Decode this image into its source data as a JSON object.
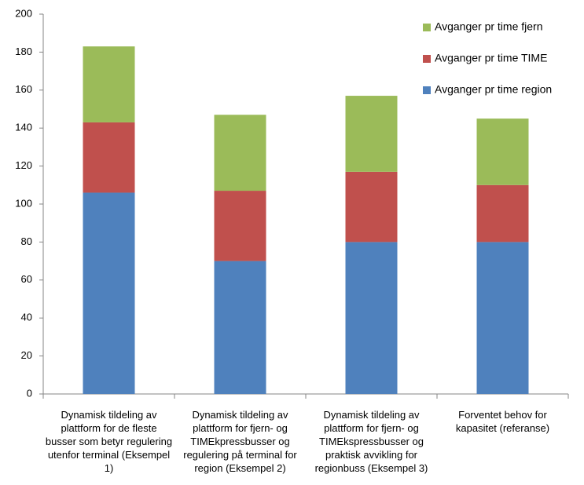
{
  "chart_data": {
    "type": "stacked-bar",
    "categories": [
      "Dynamisk tildeling av plattform for de fleste busser som betyr regulering utenfor terminal (Eksempel 1)",
      "Dynamisk tildeling av plattform for fjern- og TIMEkpressbusser og regulering på terminal for region (Eksempel 2)",
      "Dynamisk tildeling av plattform for fjern- og TIMEkspressbusser og praktisk avvikling for regionbuss (Eksempel 3)",
      "Forventet behov for kapasitet (referanse)"
    ],
    "series": [
      {
        "name": "Avganger pr time region",
        "color": "#4f81bd",
        "values": [
          106,
          70,
          80,
          80
        ]
      },
      {
        "name": "Avganger pr time TIME",
        "color": "#c0504d",
        "values": [
          37,
          37,
          37,
          30
        ]
      },
      {
        "name": "Avganger pr time fjern",
        "color": "#9bbb59",
        "values": [
          40,
          40,
          40,
          35
        ]
      }
    ],
    "ylim": [
      0,
      200
    ],
    "yticks": [
      0,
      20,
      40,
      60,
      80,
      100,
      120,
      140,
      160,
      180,
      200
    ],
    "grid": false,
    "legend": "top-right"
  }
}
